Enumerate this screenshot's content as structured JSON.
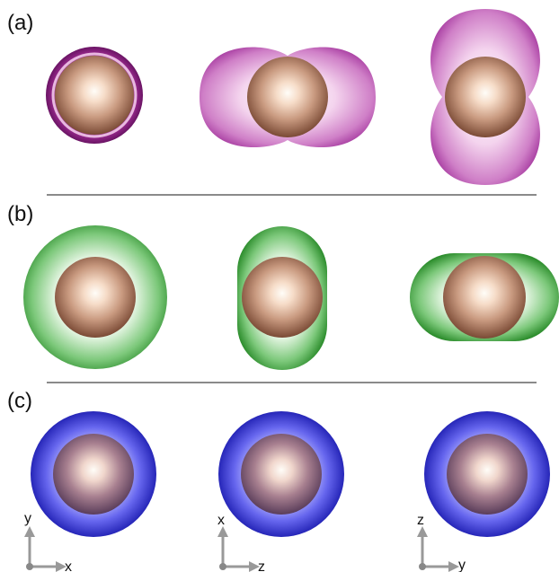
{
  "panels": [
    {
      "label": "(a)",
      "color": "#a0309a"
    },
    {
      "label": "(b)",
      "color": "#2e9a2e"
    },
    {
      "label": "(c)",
      "color": "#3a3ad8"
    }
  ],
  "axes": [
    {
      "vertical": "y",
      "horizontal": "x"
    },
    {
      "vertical": "x",
      "horizontal": "z"
    },
    {
      "vertical": "z",
      "horizontal": "y"
    }
  ],
  "core_color": "#7a4a35"
}
